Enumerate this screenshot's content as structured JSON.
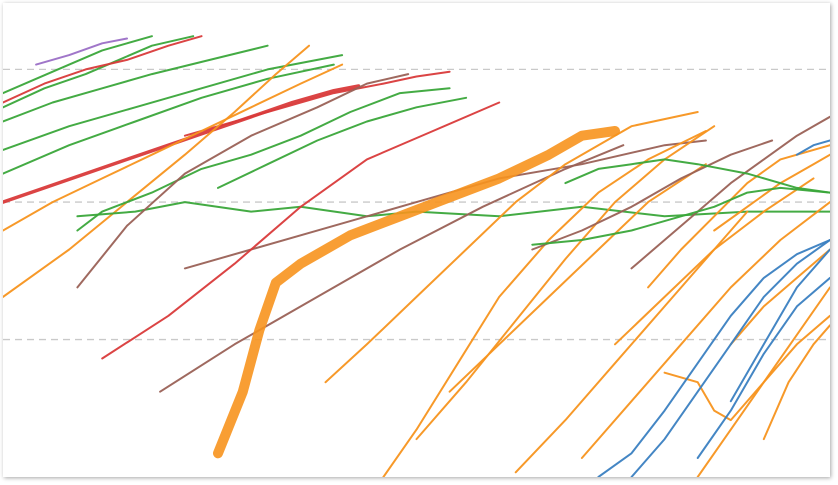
{
  "chart_data": {
    "type": "line",
    "title": "",
    "xlabel": "",
    "ylabel": "",
    "xlim": [
      0,
      100
    ],
    "ylim": [
      0,
      100
    ],
    "log_scale_y": true,
    "grid": {
      "horizontal": true,
      "vertical": false,
      "style": "dashed"
    },
    "legend": "none",
    "colors": {
      "orange": "#f7931e",
      "green": "#3aa63a",
      "red": "#d93a3a",
      "brown": "#9a6156",
      "blue": "#3a7fc1",
      "purple": "#9b6fc6",
      "grid": "#c9c9c9"
    },
    "gridlines_y": [
      86,
      58,
      29
    ],
    "series": [
      {
        "color": "green",
        "width": 2,
        "x": [
          0,
          4,
          8,
          12,
          15,
          18
        ],
        "y": [
          81,
          84,
          87,
          90,
          91.5,
          93
        ]
      },
      {
        "color": "green",
        "width": 2,
        "x": [
          0,
          5,
          10,
          14,
          18,
          23
        ],
        "y": [
          78,
          82,
          85,
          88,
          91,
          93
        ]
      },
      {
        "color": "purple",
        "width": 2,
        "x": [
          4,
          8,
          12,
          15
        ],
        "y": [
          87,
          89,
          91.5,
          92.5
        ]
      },
      {
        "color": "red",
        "width": 2,
        "x": [
          0,
          5,
          10,
          15,
          20,
          24
        ],
        "y": [
          79,
          83,
          86,
          88,
          91,
          93
        ]
      },
      {
        "color": "green",
        "width": 2,
        "x": [
          0,
          6,
          12,
          18,
          25,
          32
        ],
        "y": [
          75,
          79,
          82,
          85,
          88,
          91
        ]
      },
      {
        "color": "green",
        "width": 2,
        "x": [
          0,
          8,
          16,
          24,
          32,
          40
        ],
        "y": [
          64,
          70,
          75,
          80,
          84,
          87
        ]
      },
      {
        "color": "green",
        "width": 2,
        "x": [
          0,
          8,
          16,
          24,
          32,
          41
        ],
        "y": [
          69,
          74,
          78,
          82,
          86,
          89
        ]
      },
      {
        "color": "red",
        "width": 3.5,
        "x": [
          0,
          5,
          10,
          15,
          20,
          25,
          30,
          35,
          40,
          43
        ],
        "y": [
          58,
          61,
          64,
          67,
          70,
          73,
          76,
          79,
          81.5,
          82.5
        ]
      },
      {
        "color": "red",
        "width": 2,
        "x": [
          22,
          28,
          34,
          40,
          46,
          50,
          54
        ],
        "y": [
          72,
          75,
          78,
          81,
          83,
          84.5,
          85.5
        ]
      },
      {
        "color": "orange",
        "width": 2,
        "x": [
          0,
          8,
          15,
          22,
          28,
          33,
          37
        ],
        "y": [
          38,
          48,
          58,
          68,
          77,
          85,
          91
        ]
      },
      {
        "color": "orange",
        "width": 2,
        "x": [
          0,
          6,
          12,
          18,
          24,
          30,
          36,
          41
        ],
        "y": [
          52,
          58,
          63,
          68,
          73,
          78,
          83,
          87
        ]
      },
      {
        "color": "green",
        "width": 2,
        "x": [
          9,
          12,
          18,
          24,
          30,
          36,
          42,
          48,
          54
        ],
        "y": [
          52,
          56,
          60,
          65,
          68,
          72,
          77,
          81,
          82
        ]
      },
      {
        "color": "green",
        "width": 2,
        "x": [
          9,
          16,
          22,
          30,
          36,
          44,
          50,
          60,
          70,
          80,
          90,
          100
        ],
        "y": [
          55,
          56,
          58,
          56,
          57,
          55,
          56,
          55,
          57,
          55,
          56,
          56
        ]
      },
      {
        "color": "brown",
        "width": 2,
        "x": [
          9,
          15,
          22,
          30,
          38,
          44,
          49
        ],
        "y": [
          40,
          53,
          64,
          72,
          78,
          83,
          85
        ]
      },
      {
        "color": "brown",
        "width": 2,
        "x": [
          22,
          30,
          40,
          50,
          60,
          70,
          80,
          85
        ],
        "y": [
          44,
          48,
          53,
          58,
          63,
          66,
          70,
          71
        ]
      },
      {
        "color": "brown",
        "width": 2,
        "x": [
          19,
          28,
          38,
          48,
          58,
          68,
          75
        ],
        "y": [
          18,
          28,
          38,
          48,
          57,
          65,
          70
        ]
      },
      {
        "color": "red",
        "width": 2,
        "x": [
          12,
          20,
          28,
          36,
          44,
          52,
          60
        ],
        "y": [
          25,
          34,
          45,
          57,
          67,
          73,
          79
        ]
      },
      {
        "color": "green",
        "width": 2,
        "x": [
          26,
          32,
          38,
          44,
          50,
          56
        ],
        "y": [
          61,
          66,
          71,
          75,
          78,
          80
        ]
      },
      {
        "color": "orange",
        "width": 10,
        "x": [
          26,
          29,
          31,
          33,
          36,
          42,
          48,
          54,
          60,
          66,
          70,
          74
        ],
        "y": [
          5,
          18,
          31,
          41,
          45,
          51,
          55,
          59,
          63,
          68,
          72,
          73
        ]
      },
      {
        "color": "orange",
        "width": 2,
        "x": [
          39,
          44,
          50,
          56,
          62,
          68,
          72,
          76,
          84
        ],
        "y": [
          20,
          28,
          38,
          48,
          58,
          66,
          70,
          74,
          77
        ]
      },
      {
        "color": "orange",
        "width": 2,
        "x": [
          46,
          50,
          55,
          60,
          66,
          72,
          78,
          85
        ],
        "y": [
          0,
          10,
          24,
          38,
          50,
          60,
          67,
          73
        ]
      },
      {
        "color": "orange",
        "width": 2,
        "x": [
          50,
          56,
          62,
          68,
          74,
          80,
          86
        ],
        "y": [
          8,
          20,
          33,
          46,
          58,
          67,
          74
        ]
      },
      {
        "color": "orange",
        "width": 2,
        "x": [
          54,
          60,
          66,
          72,
          78,
          85
        ],
        "y": [
          18,
          28,
          38,
          48,
          58,
          66
        ]
      },
      {
        "color": "orange",
        "width": 2,
        "x": [
          62,
          68,
          74,
          80,
          86,
          90
        ],
        "y": [
          1,
          12,
          24,
          36,
          48,
          56
        ]
      },
      {
        "color": "orange",
        "width": 2,
        "x": [
          70,
          76,
          82,
          88,
          94,
          100
        ],
        "y": [
          4,
          16,
          28,
          40,
          50,
          58
        ]
      },
      {
        "color": "orange",
        "width": 2,
        "x": [
          74,
          80,
          86,
          92,
          98
        ],
        "y": [
          28,
          38,
          48,
          56,
          63
        ]
      },
      {
        "color": "orange",
        "width": 2,
        "x": [
          78,
          82,
          86,
          90,
          94,
          100
        ],
        "y": [
          40,
          48,
          55,
          62,
          67,
          70
        ]
      },
      {
        "color": "orange",
        "width": 2,
        "x": [
          80,
          84,
          86,
          88,
          92,
          96,
          100
        ],
        "y": [
          22,
          20,
          14,
          12,
          20,
          28,
          34
        ]
      },
      {
        "color": "orange",
        "width": 2,
        "x": [
          84,
          88,
          92,
          96,
          100
        ],
        "y": [
          0,
          10,
          20,
          30,
          40
        ]
      },
      {
        "color": "orange",
        "width": 2,
        "x": [
          86,
          90,
          94,
          98,
          100
        ],
        "y": [
          52,
          57,
          62,
          66,
          68
        ]
      },
      {
        "color": "orange",
        "width": 2,
        "x": [
          88,
          92,
          96,
          100
        ],
        "y": [
          28,
          36,
          42,
          48
        ]
      },
      {
        "color": "orange",
        "width": 2,
        "x": [
          92,
          95,
          98,
          100
        ],
        "y": [
          8,
          20,
          28,
          32
        ]
      },
      {
        "color": "brown",
        "width": 2,
        "x": [
          64,
          70,
          76,
          82,
          88,
          93
        ],
        "y": [
          48,
          52,
          57,
          63,
          68,
          71
        ]
      },
      {
        "color": "brown",
        "width": 2,
        "x": [
          76,
          80,
          84,
          88,
          92,
          96,
          100
        ],
        "y": [
          44,
          50,
          56,
          62,
          67,
          72,
          76
        ]
      },
      {
        "color": "green",
        "width": 2,
        "x": [
          64,
          70,
          76,
          82,
          86,
          90,
          94,
          100
        ],
        "y": [
          49,
          50,
          52,
          55,
          57,
          60,
          61,
          60
        ]
      },
      {
        "color": "green",
        "width": 2,
        "x": [
          68,
          72,
          76,
          80,
          84,
          90,
          96,
          100
        ],
        "y": [
          62,
          65,
          66,
          67,
          66,
          64,
          61,
          60
        ]
      },
      {
        "color": "blue",
        "width": 2,
        "x": [
          72,
          76,
          80,
          84,
          88,
          92,
          96,
          100
        ],
        "y": [
          0,
          5,
          14,
          24,
          34,
          42,
          47,
          50
        ]
      },
      {
        "color": "blue",
        "width": 2,
        "x": [
          76,
          80,
          84,
          88,
          92,
          96,
          100
        ],
        "y": [
          0,
          8,
          18,
          28,
          38,
          45,
          50
        ]
      },
      {
        "color": "blue",
        "width": 2,
        "x": [
          84,
          88,
          92,
          96,
          100
        ],
        "y": [
          4,
          14,
          26,
          36,
          42
        ]
      },
      {
        "color": "blue",
        "width": 2,
        "x": [
          88,
          92,
          96,
          100
        ],
        "y": [
          16,
          28,
          40,
          48
        ]
      },
      {
        "color": "blue",
        "width": 2,
        "x": [
          96,
          98,
          100
        ],
        "y": [
          68,
          70,
          71
        ]
      }
    ]
  }
}
